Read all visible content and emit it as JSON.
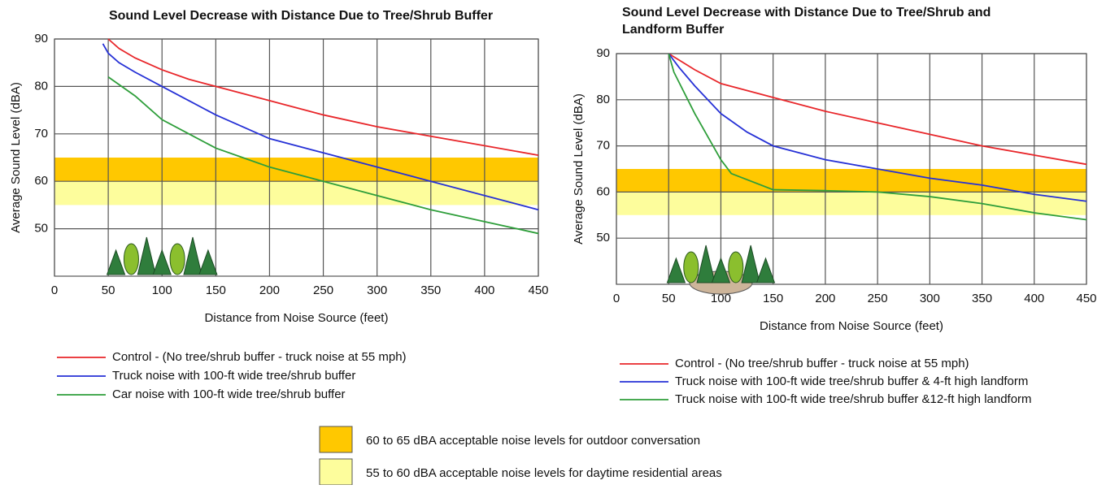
{
  "chart_data": [
    {
      "type": "line",
      "title": "Sound Level Decrease with Distance Due to Tree/Shrub Buffer",
      "x_label": "Distance from Noise Source (feet)",
      "y_label": "Average Sound Level (dBA)",
      "xlim": [
        0,
        450
      ],
      "xticks": [
        0,
        50,
        100,
        150,
        200,
        250,
        300,
        350,
        400,
        450
      ],
      "ylim": [
        40,
        90
      ],
      "yticks": [
        50,
        60,
        70,
        80,
        90
      ],
      "grid": true,
      "series": [
        {
          "name": "Control - (No tree/shrub buffer - truck noise at 55 mph)",
          "color": "#e8262a",
          "x": [
            50,
            60,
            75,
            100,
            125,
            150,
            200,
            250,
            300,
            350,
            400,
            450
          ],
          "values": [
            90,
            88,
            86,
            83.5,
            81.5,
            80,
            77,
            74,
            71.5,
            69.5,
            67.5,
            65.5
          ]
        },
        {
          "name": "Truck noise with 100-ft wide tree/shrub buffer",
          "color": "#2631d6",
          "x": [
            45,
            50,
            60,
            75,
            100,
            125,
            150,
            200,
            250,
            300,
            350,
            400,
            450
          ],
          "values": [
            89,
            87,
            85,
            83,
            80,
            77,
            74,
            69,
            66,
            63,
            60,
            57,
            54
          ]
        },
        {
          "name": "Car noise with 100-ft wide tree/shrub buffer",
          "color": "#2e9e3a",
          "x": [
            50,
            75,
            100,
            125,
            150,
            175,
            200,
            250,
            300,
            350,
            400,
            450
          ],
          "values": [
            82,
            78,
            73,
            70,
            67,
            65,
            63,
            60,
            57,
            54,
            51.5,
            49
          ]
        }
      ]
    },
    {
      "type": "line",
      "title": "Sound Level Decrease with Distance Due to Tree/Shrub and Landform Buffer",
      "x_label": "Distance from Noise Source (feet)",
      "y_label": "Average Sound Level (dBA)",
      "xlim": [
        0,
        450
      ],
      "xticks": [
        0,
        50,
        100,
        150,
        200,
        250,
        300,
        350,
        400,
        450
      ],
      "ylim": [
        40,
        90
      ],
      "yticks": [
        50,
        60,
        70,
        80,
        90
      ],
      "grid": true,
      "series": [
        {
          "name": "Control - (No tree/shrub buffer - truck noise at 55 mph)",
          "color": "#e8262a",
          "x": [
            50,
            75,
            100,
            150,
            200,
            250,
            300,
            350,
            400,
            450
          ],
          "values": [
            90,
            86.5,
            83.5,
            80.5,
            77.5,
            75,
            72.5,
            70,
            68,
            66
          ]
        },
        {
          "name": "Truck noise with 100-ft wide tree/shrub buffer & 4-ft high landform",
          "color": "#2631d6",
          "x": [
            50,
            60,
            75,
            100,
            125,
            150,
            200,
            250,
            300,
            350,
            400,
            450
          ],
          "values": [
            90,
            87,
            83,
            77,
            73,
            70,
            67,
            65,
            63,
            61.5,
            59.5,
            58
          ]
        },
        {
          "name": "Truck noise with 100-ft wide tree/shrub buffer &12-ft high landform",
          "color": "#2e9e3a",
          "x": [
            50,
            55,
            75,
            100,
            110,
            150,
            200,
            250,
            300,
            350,
            400,
            450
          ],
          "values": [
            90,
            86,
            77,
            67,
            64,
            60.5,
            60.3,
            60,
            59,
            57.5,
            55.5,
            54
          ]
        }
      ]
    }
  ],
  "bands": [
    {
      "label": "60 to 65 dBA acceptable noise levels for outdoor conversation",
      "color": "#ffc800",
      "range": [
        60,
        65
      ]
    },
    {
      "label": "55 to 60 dBA acceptable noise levels for daytime residential areas",
      "color": "#fdfd9c",
      "range": [
        55,
        60
      ]
    }
  ]
}
